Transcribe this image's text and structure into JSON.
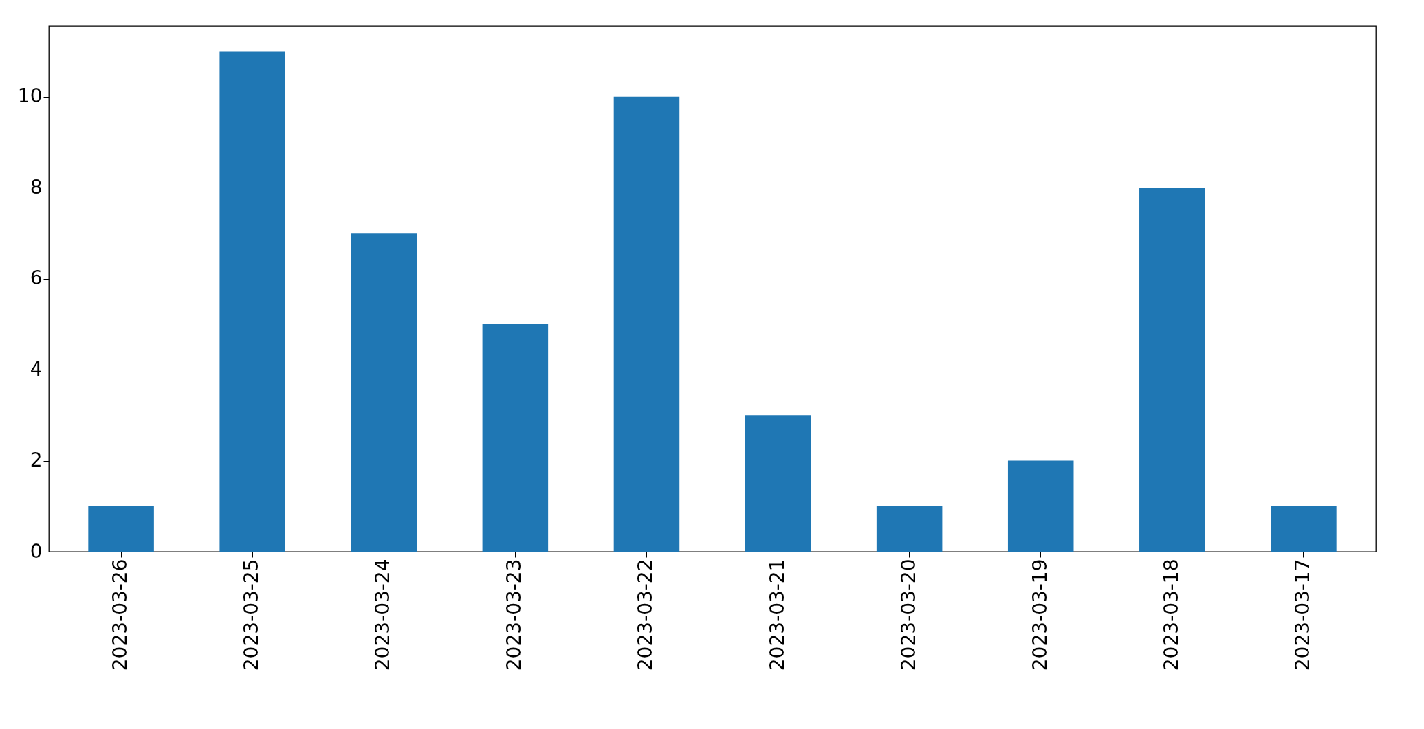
{
  "chart_data": {
    "type": "bar",
    "categories": [
      "2023-03-26",
      "2023-03-25",
      "2023-03-24",
      "2023-03-23",
      "2023-03-22",
      "2023-03-21",
      "2023-03-20",
      "2023-03-19",
      "2023-03-18",
      "2023-03-17"
    ],
    "values": [
      1,
      11,
      7,
      5,
      10,
      3,
      1,
      2,
      8,
      1
    ],
    "color": "#1f77b4",
    "ylim": [
      0,
      11.55
    ],
    "yticks": [
      0,
      2,
      4,
      6,
      8,
      10
    ],
    "grid": false
  }
}
